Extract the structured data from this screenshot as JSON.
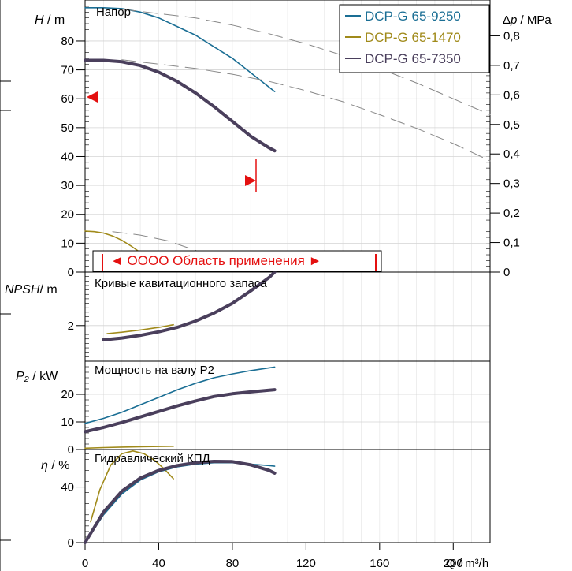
{
  "axes": {
    "head_label": "H / m",
    "head_label_italic": "H",
    "head_label_unit": " / m",
    "pressure_label": "Δp / MPa",
    "pressure_label_italic": "p",
    "pressure_label_unit": " / MPa",
    "npsh_label_italic": "NPSH",
    "npsh_label_unit": "/ m",
    "power_label_italic": "P₂",
    "power_label_unit": " / kW",
    "eff_label_italic": "η",
    "eff_label_unit": " / %",
    "flow_label": "Q / m³/h"
  },
  "panels": {
    "head_title": "Напор",
    "npsh_title": "Кривые кавитационного запаса",
    "power_title": "Мощность на валу P2",
    "eff_title": "Гидравлический КПД"
  },
  "application_range_label": "◄ OOOO Область применения ►",
  "legend": [
    {
      "name": "DCP-G 65-9250",
      "color": "#1a6e94"
    },
    {
      "name": "DCP-G 65-1470",
      "color": "#a08a1a"
    },
    {
      "name": "DCP-G 65-7350",
      "color": "#4a3f5c"
    }
  ],
  "chart_data": [
    {
      "type": "line",
      "title": "Напор",
      "xlabel": "Q / m³/h",
      "ylabel": "H / m",
      "y2label": "Δp / MPa",
      "xlim": [
        0,
        220
      ],
      "ylim": [
        0,
        92
      ],
      "y2lim": [
        0,
        0.9
      ],
      "x_ticks": [
        0,
        40,
        80,
        120,
        160,
        200
      ],
      "y_ticks": [
        0,
        10,
        20,
        30,
        40,
        50,
        60,
        70,
        80
      ],
      "y2_ticks": [
        "0",
        "0,1",
        "0,2",
        "0,3",
        "0,4",
        "0,5",
        "0,6",
        "0,7",
        "0,8"
      ],
      "series": [
        {
          "name": "DCP-G 65-9250",
          "color": "#1a6e94",
          "width": 1.6,
          "x": [
            0,
            10,
            20,
            30,
            40,
            50,
            60,
            70,
            80,
            90,
            100,
            103
          ],
          "y": [
            91.5,
            91.5,
            91.2,
            90.0,
            88.0,
            85.0,
            82.0,
            78.0,
            74.0,
            69.0,
            64.0,
            62.5
          ]
        },
        {
          "name": "DCP-G 65-7350",
          "color": "#4a3f5c",
          "width": 4,
          "x": [
            0,
            10,
            20,
            30,
            40,
            50,
            60,
            70,
            80,
            90,
            100,
            103
          ],
          "y": [
            73.3,
            73.3,
            72.8,
            71.5,
            69.2,
            66.0,
            62.0,
            57.3,
            52.2,
            47.0,
            43.0,
            42.0
          ]
        },
        {
          "name": "DCP-G 65-1470",
          "color": "#a08a1a",
          "width": 1.6,
          "x": [
            0,
            5,
            10,
            15,
            20,
            25,
            30,
            35,
            40
          ],
          "y": [
            14.2,
            14.0,
            13.5,
            12.5,
            11.0,
            9.0,
            6.8,
            3.8,
            0.5
          ]
        },
        {
          "name": "",
          "color": "#888888",
          "width": 1,
          "dash": true,
          "x": [
            20,
            40,
            60,
            80,
            100,
            120,
            140,
            160,
            180,
            200,
            220
          ],
          "y": [
            91.0,
            89.5,
            88.0,
            85.5,
            82.5,
            79.0,
            75.0,
            70.5,
            65.5,
            60.0,
            54.5
          ]
        },
        {
          "name": "",
          "color": "#888888",
          "width": 1,
          "dash": true,
          "x": [
            20,
            40,
            60,
            80,
            100,
            120,
            140,
            160,
            180,
            200,
            220
          ],
          "y": [
            73.5,
            72.0,
            70.5,
            68.5,
            66.0,
            62.8,
            59.0,
            54.5,
            49.8,
            44.5,
            38.5
          ]
        },
        {
          "name": "",
          "color": "#888888",
          "width": 1,
          "dash": true,
          "x": [
            15,
            30,
            45,
            60,
            75
          ],
          "y": [
            14.0,
            12.8,
            10.8,
            7.5,
            3.0
          ]
        }
      ]
    },
    {
      "type": "line",
      "title": "Кривые кавитационного запаса",
      "ylabel": "NPSH / m",
      "xlim": [
        0,
        220
      ],
      "ylim": [
        0,
        5
      ],
      "y_ticks": [
        2
      ],
      "series": [
        {
          "name": "DCP-G 65-1470",
          "color": "#a08a1a",
          "width": 1.6,
          "x": [
            12,
            20,
            30,
            40,
            48
          ],
          "y": [
            1.55,
            1.63,
            1.75,
            1.9,
            2.05
          ]
        },
        {
          "name": "DCP-G 65-7350",
          "color": "#4a3f5c",
          "width": 4,
          "x": [
            10,
            20,
            30,
            40,
            50,
            60,
            70,
            80,
            90,
            100,
            103
          ],
          "y": [
            1.2,
            1.3,
            1.45,
            1.65,
            1.9,
            2.25,
            2.7,
            3.25,
            3.95,
            4.7,
            5.0
          ]
        }
      ]
    },
    {
      "type": "line",
      "title": "Мощность на валу P2",
      "ylabel": "P₂ / kW",
      "xlim": [
        0,
        220
      ],
      "ylim": [
        0,
        32
      ],
      "y_ticks": [
        0,
        10,
        20
      ],
      "series": [
        {
          "name": "DCP-G 65-9250",
          "color": "#1a6e94",
          "width": 1.6,
          "x": [
            0,
            10,
            20,
            30,
            40,
            50,
            60,
            70,
            80,
            90,
            100,
            103
          ],
          "y": [
            9.5,
            11.3,
            13.5,
            16.2,
            18.9,
            21.6,
            24.0,
            26.0,
            27.4,
            28.6,
            29.6,
            29.9
          ]
        },
        {
          "name": "DCP-G 65-7350",
          "color": "#4a3f5c",
          "width": 4,
          "x": [
            0,
            10,
            20,
            30,
            40,
            50,
            60,
            70,
            80,
            90,
            100,
            103
          ],
          "y": [
            6.5,
            8.0,
            9.8,
            11.8,
            13.8,
            15.8,
            17.6,
            19.2,
            20.2,
            20.9,
            21.5,
            21.7
          ]
        },
        {
          "name": "DCP-G 65-1470",
          "color": "#a08a1a",
          "width": 1.6,
          "x": [
            0,
            10,
            20,
            30,
            40,
            48
          ],
          "y": [
            0.5,
            0.7,
            0.9,
            1.0,
            1.1,
            1.2
          ]
        }
      ]
    },
    {
      "type": "line",
      "title": "Гидравлический КПД",
      "ylabel": "η / %",
      "xlabel": "Q / m³/h",
      "xlim": [
        0,
        220
      ],
      "ylim": [
        0,
        67
      ],
      "x_ticks": [
        0,
        40,
        80,
        120,
        160,
        200
      ],
      "y_ticks": [
        0,
        40
      ],
      "series": [
        {
          "name": "DCP-G 65-1470",
          "color": "#a08a1a",
          "width": 1.6,
          "x": [
            3,
            8,
            14,
            20,
            26,
            32,
            38,
            43,
            48
          ],
          "y": [
            15,
            38,
            56,
            64,
            66,
            64,
            59,
            53,
            46
          ]
        },
        {
          "name": "DCP-G 65-9250",
          "color": "#1a6e94",
          "width": 1.6,
          "x": [
            0,
            10,
            20,
            30,
            40,
            50,
            60,
            70,
            80,
            90,
            100,
            103
          ],
          "y": [
            0,
            20,
            35,
            45,
            51,
            54.5,
            56.5,
            57.5,
            57.5,
            56.5,
            55.5,
            55
          ]
        },
        {
          "name": "DCP-G 65-7350",
          "color": "#4a3f5c",
          "width": 4,
          "x": [
            0,
            10,
            20,
            30,
            40,
            50,
            60,
            70,
            80,
            90,
            100,
            103
          ],
          "y": [
            0,
            22,
            37,
            46.5,
            52,
            55.5,
            57.5,
            58.5,
            58.3,
            56,
            52,
            50
          ]
        }
      ]
    }
  ]
}
